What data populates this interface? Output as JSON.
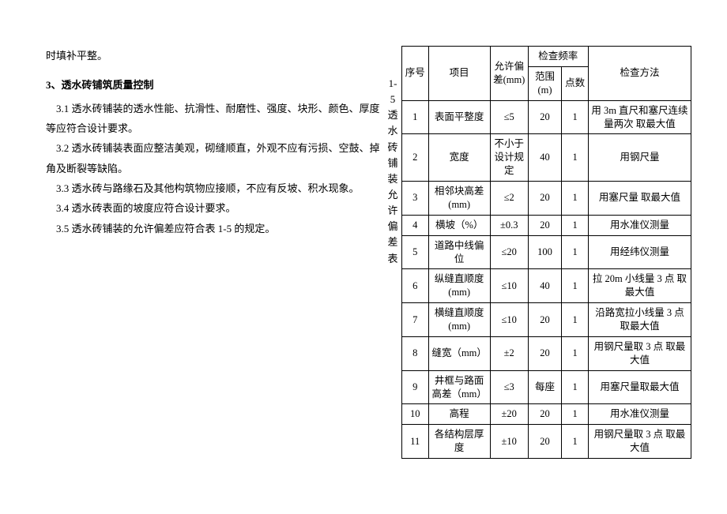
{
  "topLine": "时填补平整。",
  "heading": "3、透水砖铺筑质量控制",
  "paras": {
    "p1": "3.1 透水砖铺装的透水性能、抗滑性、耐磨性、强度、块形、颜色、厚度等应符合设计要求。",
    "p2": "3.2 透水砖铺装表面应整洁美观，砌缝顺直，外观不应有污损、空鼓、掉角及断裂等缺陷。",
    "p3": "3.3 透水砖与路缘石及其他构筑物应接顺，不应有反坡、积水现象。",
    "p4": "3.4 透水砖表面的坡度应符合设计要求。",
    "p5": "3.5 透水砖铺装的允许偏差应符合表 1-5 的规定。"
  },
  "verticalLabel": "1-5透水砖铺装允许偏差表",
  "tableHeaders": {
    "seq": "序号",
    "item": "项目",
    "dev": "允许偏差(mm)",
    "freq": "检查频率",
    "range": "范围(m)",
    "points": "点数",
    "method": "检查方法"
  },
  "rows": [
    {
      "seq": "1",
      "item": "表面平整度",
      "dev": "≤5",
      "range": "20",
      "pts": "1",
      "method": "用 3m 直尺和塞尺连续量两次 取最大值"
    },
    {
      "seq": "2",
      "item": "宽度",
      "dev": "不小于设计规定",
      "range": "40",
      "pts": "1",
      "method": "用钢尺量"
    },
    {
      "seq": "3",
      "item": "相邻块高差(mm)",
      "dev": "≤2",
      "range": "20",
      "pts": "1",
      "method": "用塞尺量 取最大值"
    },
    {
      "seq": "4",
      "item": "横坡（%）",
      "dev": "±0.3",
      "range": "20",
      "pts": "1",
      "method": "用水准仪测量"
    },
    {
      "seq": "5",
      "item": "道路中线偏位",
      "dev": "≤20",
      "range": "100",
      "pts": "1",
      "method": "用经纬仪测量"
    },
    {
      "seq": "6",
      "item": "纵缝直顺度(mm)",
      "dev": "≤10",
      "range": "40",
      "pts": "1",
      "method": "拉 20m 小线量 3 点 取最大值"
    },
    {
      "seq": "7",
      "item": "横缝直顺度(mm)",
      "dev": "≤10",
      "range": "20",
      "pts": "1",
      "method": "沿路宽拉小线量 3 点 取最大值"
    },
    {
      "seq": "8",
      "item": "缝宽（mm）",
      "dev": "±2",
      "range": "20",
      "pts": "1",
      "method": "用钢尺量取 3 点 取最大值"
    },
    {
      "seq": "9",
      "item": "井框与路面高差（mm）",
      "dev": "≤3",
      "range": "每座",
      "pts": "1",
      "method": "用塞尺量取最大值"
    },
    {
      "seq": "10",
      "item": "高程",
      "dev": "±20",
      "range": "20",
      "pts": "1",
      "method": "用水准仪测量"
    },
    {
      "seq": "11",
      "item": "各结构层厚度",
      "dev": "±10",
      "range": "20",
      "pts": "1",
      "method": "用钢尺量取 3 点 取最大值"
    }
  ]
}
